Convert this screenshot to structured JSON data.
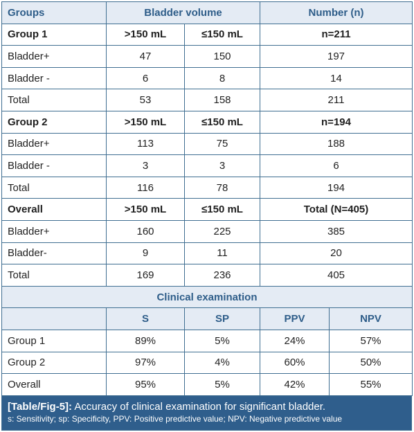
{
  "table": {
    "header": {
      "groups": "Groups",
      "bladder_volume": "Bladder volume",
      "number": "Number (n)"
    },
    "blocks": [
      {
        "group_label": "Group 1",
        "col_gt": ">150 mL",
        "col_le": "≤150 mL",
        "n_label": "n=211",
        "rows": [
          {
            "label": "Bladder+",
            "gt": "47",
            "le": "150",
            "n": "197"
          },
          {
            "label": "Bladder -",
            "gt": "6",
            "le": "8",
            "n": "14"
          },
          {
            "label": "Total",
            "gt": "53",
            "le": "158",
            "n": "211"
          }
        ]
      },
      {
        "group_label": "Group 2",
        "col_gt": ">150 mL",
        "col_le": "≤150 mL",
        "n_label": "n=194",
        "rows": [
          {
            "label": "Bladder+",
            "gt": "113",
            "le": "75",
            "n": "188"
          },
          {
            "label": "Bladder -",
            "gt": "3",
            "le": "3",
            "n": "6"
          },
          {
            "label": "Total",
            "gt": "116",
            "le": "78",
            "n": "194"
          }
        ]
      },
      {
        "group_label": "Overall",
        "col_gt": ">150 mL",
        "col_le": "≤150 mL",
        "n_label": "Total (N=405)",
        "rows": [
          {
            "label": "Bladder+",
            "gt": "160",
            "le": "225",
            "n": "385"
          },
          {
            "label": "Bladder-",
            "gt": "9",
            "le": "11",
            "n": "20"
          },
          {
            "label": "Total",
            "gt": "169",
            "le": "236",
            "n": "405"
          }
        ]
      }
    ],
    "clinical": {
      "title": "Clinical examination",
      "headers": [
        "S",
        "SP",
        "PPV",
        "NPV"
      ],
      "rows": [
        {
          "label": "Group 1",
          "s": "89%",
          "sp": "5%",
          "ppv": "24%",
          "npv": "57%"
        },
        {
          "label": "Group 2",
          "s": "97%",
          "sp": "4%",
          "ppv": "60%",
          "npv": "50%"
        },
        {
          "label": "Overall",
          "s": "95%",
          "sp": "5%",
          "ppv": "42%",
          "npv": "55%"
        }
      ]
    }
  },
  "caption": {
    "ref": "[Table/Fig-5]:",
    "title": "Accuracy of clinical examination for significant bladder.",
    "legend": "s: Sensitivity; sp: Specificity, PPV: Positive predictive value; NPV: Negative predictive value"
  }
}
